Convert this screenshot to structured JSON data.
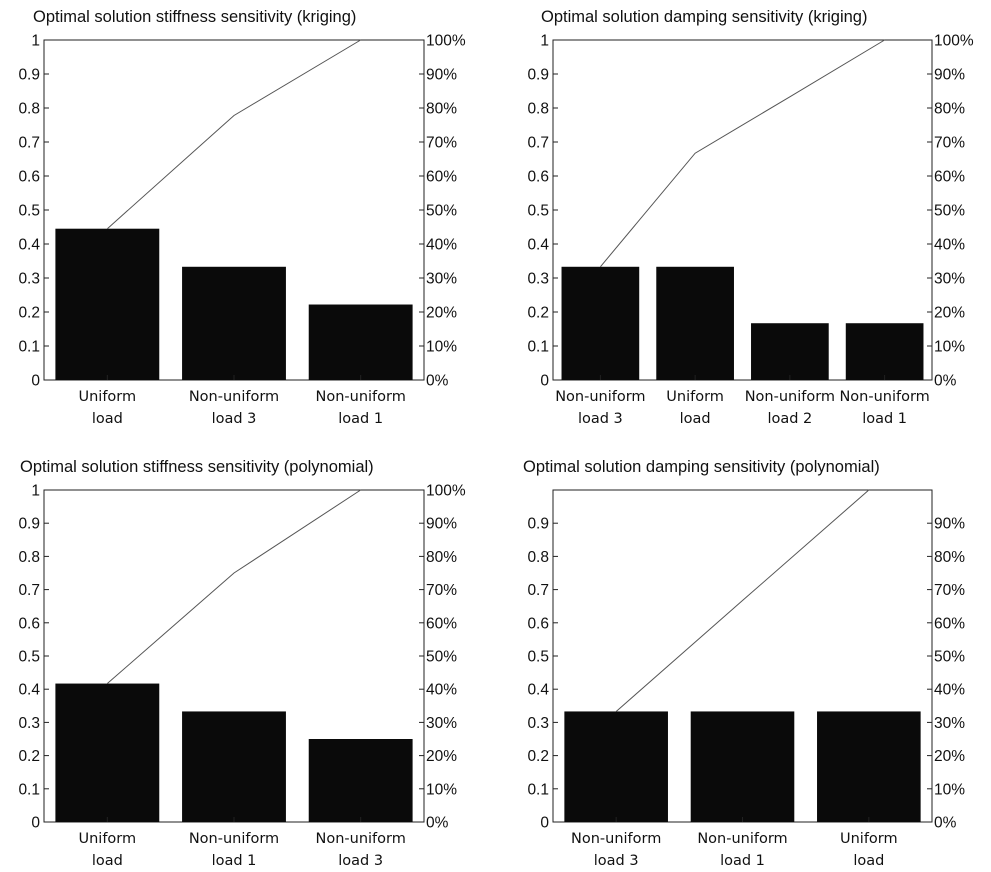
{
  "chart_data": [
    {
      "type": "bar",
      "title": "Optimal solution stiffness sensitivity (kriging)",
      "categories": [
        [
          "Uniform",
          "load"
        ],
        [
          "Non-uniform",
          "load 3"
        ],
        [
          "Non-uniform",
          "load 1"
        ]
      ],
      "values": [
        0.445,
        0.333,
        0.222
      ],
      "cumulative_line": [
        0.445,
        0.778,
        1.0
      ],
      "ylim": [
        0,
        1
      ],
      "y_ticks": [
        "0",
        "0.1",
        "0.2",
        "0.3",
        "0.4",
        "0.5",
        "0.6",
        "0.7",
        "0.8",
        "0.9",
        "1"
      ],
      "y2lim": [
        0,
        100
      ],
      "y2_ticks": [
        "0%",
        "10%",
        "20%",
        "30%",
        "40%",
        "50%",
        "60%",
        "70%",
        "80%",
        "90%",
        "100%"
      ],
      "xlabel": "",
      "ylabel": "",
      "bar_color": "#0a0a0a",
      "line_color": "#555555",
      "grid": false
    },
    {
      "type": "bar",
      "title": "Optimal solution damping sensitivity (kriging)",
      "categories": [
        [
          "Non-uniform",
          "load 3"
        ],
        [
          "Uniform",
          "load"
        ],
        [
          "Non-uniform",
          "load 2"
        ],
        [
          "Non-uniform",
          "load 1"
        ]
      ],
      "values": [
        0.333,
        0.333,
        0.167,
        0.167
      ],
      "cumulative_line": [
        0.333,
        0.667,
        0.833,
        1.0
      ],
      "ylim": [
        0,
        1
      ],
      "y_ticks": [
        "0",
        "0.1",
        "0.2",
        "0.3",
        "0.4",
        "0.5",
        "0.6",
        "0.7",
        "0.8",
        "0.9",
        "1"
      ],
      "y2lim": [
        0,
        100
      ],
      "y2_ticks": [
        "0%",
        "10%",
        "20%",
        "30%",
        "40%",
        "50%",
        "60%",
        "70%",
        "80%",
        "90%",
        "100%"
      ],
      "xlabel": "",
      "ylabel": "",
      "bar_color": "#0a0a0a",
      "line_color": "#555555",
      "grid": false
    },
    {
      "type": "bar",
      "title": "Optimal solution stiffness sensitivity (polynomial)",
      "categories": [
        [
          "Uniform",
          "load"
        ],
        [
          "Non-uniform",
          "load 1"
        ],
        [
          "Non-uniform",
          "load 3"
        ]
      ],
      "values": [
        0.417,
        0.333,
        0.25
      ],
      "cumulative_line": [
        0.417,
        0.75,
        1.0
      ],
      "ylim": [
        0,
        1
      ],
      "y_ticks": [
        "0",
        "0.1",
        "0.2",
        "0.3",
        "0.4",
        "0.5",
        "0.6",
        "0.7",
        "0.8",
        "0.9",
        "1"
      ],
      "y2lim": [
        0,
        100
      ],
      "y2_ticks": [
        "0%",
        "10%",
        "20%",
        "30%",
        "40%",
        "50%",
        "60%",
        "70%",
        "80%",
        "90%",
        "100%"
      ],
      "xlabel": "",
      "ylabel": "",
      "bar_color": "#0a0a0a",
      "line_color": "#555555",
      "grid": false
    },
    {
      "type": "bar",
      "title": "Optimal solution damping sensitivity (polynomial)",
      "categories": [
        [
          "Non-uniform",
          "load 3"
        ],
        [
          "Non-uniform",
          "load 1"
        ],
        [
          "Uniform",
          "load"
        ]
      ],
      "values": [
        0.333,
        0.333,
        0.333
      ],
      "cumulative_line": [
        0.333,
        0.667,
        1.0
      ],
      "ylim": [
        0,
        1
      ],
      "y_ticks": [
        "0",
        "0.1",
        "0.2",
        "0.3",
        "0.4",
        "0.5",
        "0.6",
        "0.7",
        "0.8",
        "0.9",
        ""
      ],
      "y2lim": [
        0,
        100
      ],
      "y2_ticks": [
        "0%",
        "10%",
        "20%",
        "30%",
        "40%",
        "50%",
        "60%",
        "70%",
        "80%",
        "90%",
        ""
      ],
      "xlabel": "",
      "ylabel": "",
      "bar_color": "#0a0a0a",
      "line_color": "#555555",
      "grid": false
    }
  ]
}
